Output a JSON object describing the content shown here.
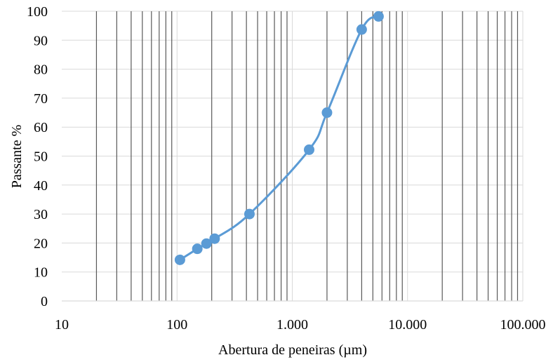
{
  "chart_data": {
    "type": "scatter",
    "title": "",
    "xlabel": "Abertura de peneiras (µm)",
    "ylabel": "Passante %",
    "x_scale": "log",
    "xlim": [
      10,
      100000
    ],
    "ylim": [
      0,
      100
    ],
    "x_ticks": [
      10,
      100,
      1000,
      10000,
      100000
    ],
    "x_tick_labels": [
      "10",
      "100",
      "1.000",
      "10.000",
      "100.000"
    ],
    "y_ticks": [
      0,
      10,
      20,
      30,
      40,
      50,
      60,
      70,
      80,
      90,
      100
    ],
    "y_tick_labels": [
      "0",
      "10",
      "20",
      "30",
      "40",
      "50",
      "60",
      "70",
      "80",
      "90",
      "100"
    ],
    "grid": true,
    "legend": "none",
    "series": [
      {
        "color": "#5b9bd5",
        "line": "smooth",
        "x": [
          106,
          150,
          180,
          212,
          425,
          1400,
          2000,
          4000,
          5600
        ],
        "y": [
          14.2,
          18.0,
          19.8,
          21.5,
          30.0,
          52.2,
          65.0,
          93.7,
          98.2
        ]
      }
    ]
  }
}
